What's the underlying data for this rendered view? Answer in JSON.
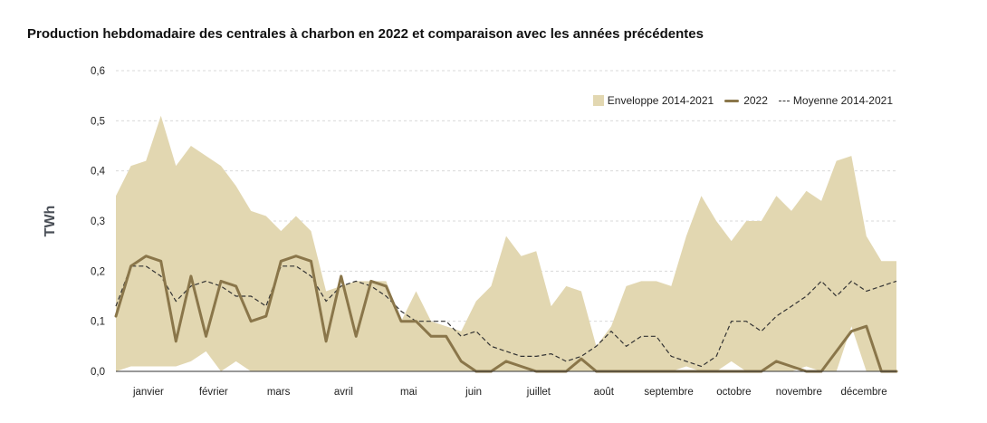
{
  "chart_data": {
    "type": "area",
    "title": "Production hebdomadaire des centrales à charbon en 2022 et comparaison avec les années précédentes",
    "ylabel": "TWh",
    "xlabel": "",
    "ylim": [
      0,
      0.6
    ],
    "yticks": [
      "0,0",
      "0,1",
      "0,2",
      "0,3",
      "0,4",
      "0,5",
      "0,6"
    ],
    "month_labels": [
      "janvier",
      "février",
      "mars",
      "avril",
      "mai",
      "juin",
      "juillet",
      "août",
      "septembre",
      "octobre",
      "novembre",
      "décembre"
    ],
    "x": [
      1,
      2,
      3,
      4,
      5,
      6,
      7,
      8,
      9,
      10,
      11,
      12,
      13,
      14,
      15,
      16,
      17,
      18,
      19,
      20,
      21,
      22,
      23,
      24,
      25,
      26,
      27,
      28,
      29,
      30,
      31,
      32,
      33,
      34,
      35,
      36,
      37,
      38,
      39,
      40,
      41,
      42,
      43,
      44,
      45,
      46,
      47,
      48,
      49,
      50,
      51,
      52,
      53
    ],
    "grid": true,
    "legend_position": "top-right",
    "colors": {
      "envelope": "#e2d7b1",
      "line_2022": "#8a764a",
      "average": "#333333"
    },
    "series": [
      {
        "name": "Enveloppe 2014-2021",
        "style": "band",
        "upper": [
          0.35,
          0.41,
          0.42,
          0.51,
          0.41,
          0.45,
          0.43,
          0.41,
          0.37,
          0.32,
          0.31,
          0.28,
          0.31,
          0.28,
          0.16,
          0.17,
          0.18,
          0.18,
          0.18,
          0.1,
          0.16,
          0.1,
          0.09,
          0.08,
          0.14,
          0.17,
          0.27,
          0.23,
          0.24,
          0.13,
          0.17,
          0.16,
          0.05,
          0.09,
          0.17,
          0.18,
          0.18,
          0.17,
          0.27,
          0.35,
          0.3,
          0.26,
          0.3,
          0.3,
          0.35,
          0.32,
          0.36,
          0.34,
          0.42,
          0.43,
          0.27,
          0.22,
          0.22
        ],
        "lower": [
          0.0,
          0.01,
          0.01,
          0.01,
          0.01,
          0.02,
          0.04,
          0.0,
          0.02,
          0.0,
          0.0,
          0.0,
          0.0,
          0.0,
          0.0,
          0.0,
          0.0,
          0.0,
          0.0,
          0.0,
          0.0,
          0.0,
          0.0,
          0.0,
          0.0,
          0.0,
          0.0,
          0.0,
          0.0,
          0.0,
          0.0,
          0.0,
          0.0,
          0.0,
          0.0,
          0.0,
          0.0,
          0.0,
          0.01,
          0.0,
          0.0,
          0.02,
          0.0,
          0.0,
          0.0,
          0.0,
          0.01,
          0.0,
          0.0,
          0.09,
          0.0,
          0.0,
          0.0
        ]
      },
      {
        "name": "2022",
        "style": "solid",
        "values": [
          0.11,
          0.21,
          0.23,
          0.22,
          0.06,
          0.19,
          0.07,
          0.18,
          0.17,
          0.1,
          0.11,
          0.22,
          0.23,
          0.22,
          0.06,
          0.19,
          0.07,
          0.18,
          0.17,
          0.1,
          0.1,
          0.07,
          0.07,
          0.02,
          0.0,
          0.0,
          0.02,
          0.01,
          0.0,
          0.0,
          0.0,
          0.025,
          0.0,
          0.0,
          0.0,
          0.0,
          0.0,
          0.0,
          0.0,
          0.0,
          0.0,
          0.0,
          0.0,
          0.0,
          0.02,
          0.01,
          0.0,
          0.0,
          0.04,
          0.08,
          0.09,
          0.0,
          0.0
        ]
      },
      {
        "name": "Moyenne 2014-2021",
        "style": "dashed",
        "values": [
          0.13,
          0.21,
          0.21,
          0.19,
          0.14,
          0.17,
          0.18,
          0.17,
          0.15,
          0.15,
          0.13,
          0.21,
          0.21,
          0.19,
          0.14,
          0.17,
          0.18,
          0.17,
          0.15,
          0.12,
          0.1,
          0.1,
          0.1,
          0.07,
          0.08,
          0.05,
          0.04,
          0.03,
          0.03,
          0.035,
          0.02,
          0.03,
          0.05,
          0.08,
          0.05,
          0.07,
          0.07,
          0.03,
          0.02,
          0.01,
          0.03,
          0.1,
          0.1,
          0.08,
          0.11,
          0.13,
          0.15,
          0.18,
          0.15,
          0.18,
          0.16,
          0.17,
          0.18
        ]
      }
    ]
  }
}
